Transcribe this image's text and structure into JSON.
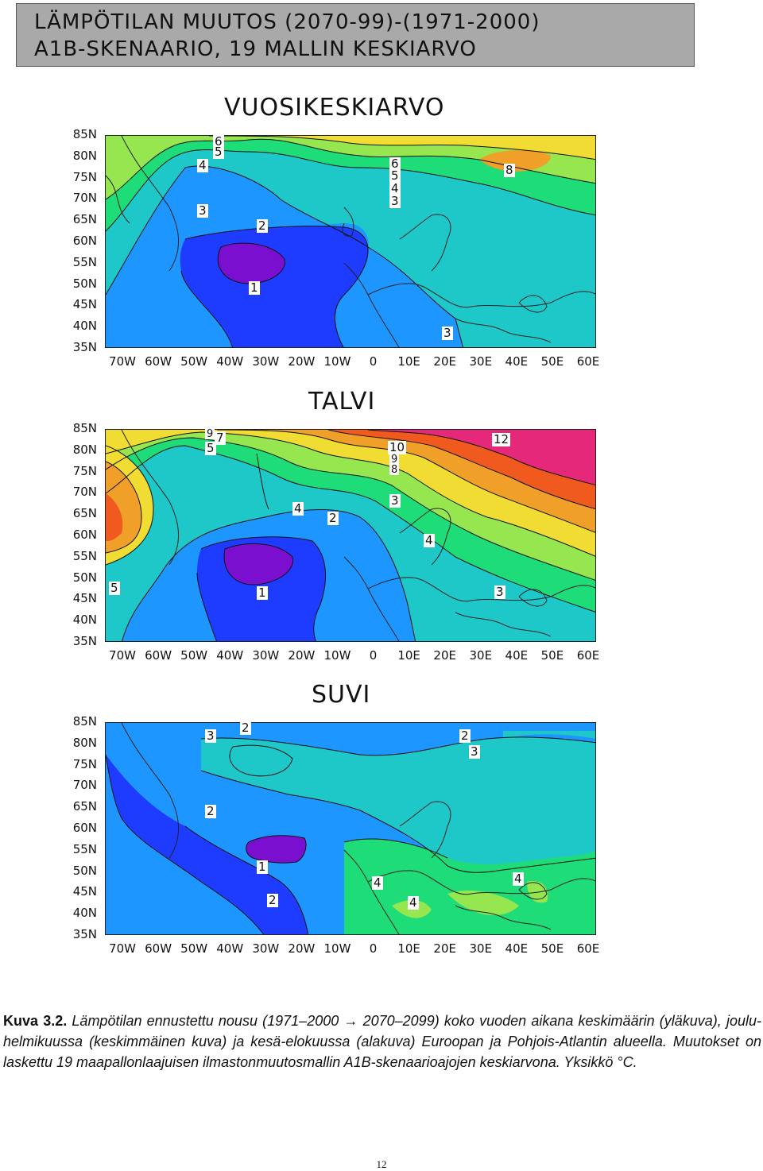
{
  "header": {
    "line1": "LÄMPÖTILAN MUUTOS (2070-99)-(1971-2000)",
    "line2": "A1B-SKENAARIO, 19 MALLIN KESKIARVO"
  },
  "axes": {
    "latitudes": [
      "85N",
      "80N",
      "75N",
      "70N",
      "65N",
      "60N",
      "55N",
      "50N",
      "45N",
      "40N",
      "35N"
    ],
    "longitudes": [
      "70W",
      "60W",
      "50W",
      "40W",
      "30W",
      "20W",
      "10W",
      "0",
      "10E",
      "20E",
      "30E",
      "40E",
      "50E",
      "60E"
    ]
  },
  "maps": [
    {
      "title": "VUOSIKESKIARVO",
      "labels": [
        "6",
        "5",
        "4",
        "3",
        "2",
        "1",
        "6",
        "5",
        "4",
        "3",
        "8",
        "3"
      ]
    },
    {
      "title": "TALVI",
      "labels": [
        "9",
        "7",
        "5",
        "4",
        "2",
        "1",
        "5",
        "10",
        "9",
        "8",
        "3",
        "4",
        "12",
        "3"
      ]
    },
    {
      "title": "SUVI",
      "labels": [
        "3",
        "2",
        "2",
        "1",
        "2",
        "4",
        "4",
        "2",
        "3",
        "4"
      ]
    }
  ],
  "colors": {
    "purple": "#7a0fd0",
    "blue": "#1e3cff",
    "lightblue": "#1e96ff",
    "cyan": "#1ec8c8",
    "green": "#1edc78",
    "lightgreen": "#96e650",
    "yellow": "#f0dc32",
    "orange": "#f0a028",
    "redorange": "#f05a1e",
    "magenta": "#e6287a"
  },
  "caption": {
    "label": "Kuva 3.2.",
    "text": " Lämpötilan ennustettu nousu (1971–2000 → 2070–2099) koko vuoden aikana keskimäärin (yläkuva), joulu-helmikuussa (keskimmäinen kuva) ja kesä-elokuussa (alakuva) Euroopan ja Pohjois-Atlantin alueella. Muutokset on laskettu 19 maapallonlaajuisen ilmastonmuutosmallin A1B-skenaarioajojen keskiarvona. Yksikkö °C."
  },
  "page_number": "12"
}
